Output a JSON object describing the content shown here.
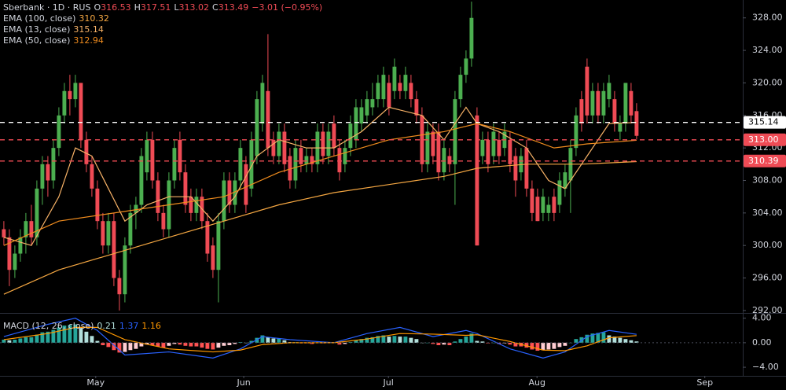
{
  "chart_data": {
    "type": "candlestick",
    "title": {
      "symbol": "Sberbank · 1D · RUS",
      "ohlc": [
        {
          "prefix": "O",
          "value": 316.53
        },
        {
          "prefix": "H",
          "value": 317.51
        },
        {
          "prefix": "L",
          "value": 313.02
        },
        {
          "prefix": "C",
          "value": 313.49
        }
      ],
      "change": "−3.01 (−0.95%)"
    },
    "up_color": "#4caf50",
    "down_color": "#ef4b55",
    "open": [
      302,
      301,
      297,
      299,
      301,
      303,
      301,
      307,
      310,
      308,
      312,
      316,
      319,
      318,
      320,
      313,
      310,
      307,
      303,
      300,
      303,
      296,
      294,
      300,
      304,
      305,
      309,
      313,
      308,
      304,
      302,
      308,
      313,
      309,
      306,
      304,
      306,
      303,
      300,
      297,
      303,
      308,
      305,
      308,
      310,
      307,
      311,
      315,
      319,
      313,
      311,
      314,
      311,
      308,
      312,
      310,
      311,
      310,
      314,
      311,
      315,
      312,
      310,
      312,
      313,
      315,
      316,
      317,
      318,
      318,
      320,
      319,
      320,
      319,
      320,
      318,
      316,
      310,
      314,
      314,
      309,
      311,
      310,
      318,
      321,
      323,
      316,
      311,
      313,
      311,
      313,
      312,
      313,
      311,
      309,
      312,
      307,
      306,
      304,
      304,
      306,
      305,
      307,
      308,
      312,
      318,
      322,
      316,
      319,
      316,
      318,
      318,
      314,
      315,
      319,
      316.53
    ],
    "high": [
      303,
      302,
      300,
      302,
      304,
      305,
      308,
      311,
      311,
      313,
      317,
      320,
      321,
      321,
      320,
      314,
      311,
      308,
      304,
      304,
      304,
      297,
      301,
      305,
      306,
      312,
      314,
      314,
      309,
      305,
      309,
      313,
      314,
      310,
      307,
      307,
      307,
      304,
      301,
      304,
      309,
      309,
      309,
      313,
      311,
      314,
      319,
      321,
      326,
      314,
      315,
      315,
      312,
      313,
      313,
      312,
      312,
      315,
      315,
      315,
      316,
      313,
      313,
      316,
      318,
      318,
      319,
      320,
      321,
      322,
      321,
      323,
      321,
      322,
      321,
      319,
      317,
      315,
      315,
      315,
      313,
      312,
      319,
      322,
      324,
      330,
      317,
      314,
      314,
      315,
      314,
      315,
      314,
      312,
      312,
      313,
      308,
      307,
      307,
      306,
      307,
      309,
      310,
      313,
      317,
      319,
      323,
      320,
      320,
      320,
      321,
      319,
      316,
      320,
      320,
      317.51
    ],
    "low": [
      300,
      295,
      296,
      298,
      299,
      300,
      300,
      305,
      306,
      307,
      311,
      315,
      316,
      317,
      312,
      309,
      306,
      302,
      299,
      299,
      295,
      292,
      293,
      299,
      302,
      304,
      308,
      307,
      303,
      301,
      301,
      307,
      308,
      304,
      303,
      303,
      302,
      298,
      296,
      293,
      302,
      304,
      304,
      307,
      304,
      306,
      310,
      314,
      311,
      310,
      310,
      309,
      307,
      307,
      309,
      309,
      309,
      309,
      310,
      310,
      311,
      308,
      309,
      311,
      312,
      314,
      315,
      316,
      317,
      317,
      316,
      318,
      318,
      318,
      317,
      315,
      309,
      309,
      310,
      308,
      308,
      309,
      305,
      317,
      320,
      322,
      300,
      310,
      309,
      310,
      310,
      311,
      309,
      306,
      308,
      306,
      303,
      303,
      303,
      303,
      303,
      304,
      306,
      304,
      311,
      314,
      315,
      315,
      315,
      315,
      317,
      314,
      313,
      314,
      315,
      313.02
    ],
    "close": [
      301,
      297,
      299,
      301,
      303,
      301,
      307,
      310,
      308,
      312,
      316,
      319,
      318,
      320,
      313,
      310,
      307,
      303,
      300,
      303,
      296,
      294,
      300,
      304,
      305,
      311,
      313,
      308,
      304,
      302,
      308,
      312,
      309,
      305,
      304,
      306,
      303,
      299,
      297,
      303,
      308,
      305,
      308,
      312,
      305,
      313,
      318,
      320,
      312,
      311,
      314,
      310,
      308,
      312,
      310,
      311,
      310,
      314,
      311,
      314,
      312,
      309,
      312,
      315,
      317,
      317,
      318,
      318,
      320,
      321,
      317,
      322,
      319,
      321,
      318,
      316,
      310,
      314,
      311,
      309,
      312,
      310,
      318,
      321,
      323,
      328,
      300,
      313,
      310,
      314,
      311,
      314,
      310,
      308,
      311,
      307,
      304,
      303,
      306,
      305,
      304,
      308,
      309,
      312,
      316,
      315,
      316,
      319,
      316,
      319,
      320,
      315,
      315,
      320,
      316,
      313.49
    ],
    "series": [
      {
        "name": "EMA (100, close)",
        "color": "#f5a742",
        "x": [
          0,
          10,
          20,
          30,
          40,
          50,
          60,
          70,
          80,
          86,
          95,
          105,
          115
        ],
        "values": [
          294,
          297,
          299,
          301,
          303,
          305,
          306.5,
          307.5,
          308.5,
          309.5,
          310,
          310,
          310.32
        ]
      },
      {
        "name": "EMA (13, close)",
        "color": "#f7b267",
        "x": [
          0,
          5,
          10,
          13,
          16,
          19,
          22,
          26,
          30,
          34,
          38,
          42,
          46,
          50,
          55,
          60,
          65,
          70,
          76,
          80,
          84,
          86,
          90,
          95,
          99,
          102,
          106,
          110,
          115
        ],
        "values": [
          301,
          300,
          306,
          312,
          311,
          307,
          303,
          305,
          306,
          306,
          303,
          306,
          311,
          313,
          312,
          312,
          314,
          317,
          316,
          313,
          317,
          315,
          314,
          312,
          308,
          307,
          311,
          315,
          315.14
        ]
      },
      {
        "name": "EMA (50, close)",
        "color": "#f08c1e",
        "x": [
          0,
          10,
          20,
          30,
          40,
          50,
          60,
          70,
          80,
          86,
          92,
          100,
          106,
          115
        ],
        "values": [
          300,
          303,
          304,
          305,
          306,
          309,
          311,
          313,
          314,
          315,
          314,
          312,
          312.5,
          312.94
        ]
      }
    ],
    "price_lines": [
      {
        "value": 315.14,
        "label": "315.14",
        "color": "#ffffff"
      },
      {
        "value": 313,
        "label": "313.00",
        "color": "#ef4b55"
      },
      {
        "value": 310.39,
        "label": "310.39",
        "color": "#ef4b55"
      }
    ],
    "xlim": [
      -0.7,
      134.3
    ],
    "xticks": [
      {
        "value": 16.7,
        "label": "May"
      },
      {
        "value": 43.6,
        "label": "Jun"
      },
      {
        "value": 69.9,
        "label": "Jul"
      },
      {
        "value": 96.9,
        "label": "Aug"
      },
      {
        "value": 127.4,
        "label": "Sep"
      }
    ],
    "ylim": [
      291.7,
      330.2
    ],
    "yticks": [
      {
        "value": 292,
        "label": "292.00"
      },
      {
        "value": 296,
        "label": "296.00"
      },
      {
        "value": 300,
        "label": "300.00"
      },
      {
        "value": 304,
        "label": "304.00"
      },
      {
        "value": 308,
        "label": "308.00"
      },
      {
        "value": 312,
        "label": "312.00"
      },
      {
        "value": 316,
        "label": "316.00"
      },
      {
        "value": 320,
        "label": "320.00"
      },
      {
        "value": 324,
        "label": "324.00"
      },
      {
        "value": 328,
        "label": "328.00"
      }
    ],
    "grid": false,
    "macd": {
      "title": "MACD (12, 26, close)",
      "ylim": [
        -5.4,
        4.6
      ],
      "yticks": [
        {
          "value": 4,
          "label": "4.00"
        },
        {
          "value": 0,
          "label": "0.00"
        },
        {
          "value": -4,
          "label": "−4.00"
        }
      ],
      "histogram": {
        "colors": [
          "#26a69a",
          "#b2dfdb",
          "#ffcdd2",
          "#ff5252"
        ],
        "values": [
          0.5,
          0.4,
          0.5,
          0.7,
          0.9,
          0.9,
          1.3,
          1.7,
          1.8,
          2.1,
          2.5,
          2.8,
          2.9,
          3.0,
          2.4,
          1.8,
          1.1,
          0.3,
          -0.4,
          -0.7,
          -1.2,
          -1.6,
          -1.5,
          -1.2,
          -1.0,
          -0.6,
          -0.3,
          -0.4,
          -0.6,
          -0.8,
          -0.5,
          -0.2,
          -0.3,
          -0.5,
          -0.6,
          -0.6,
          -0.8,
          -1.0,
          -1.1,
          -0.8,
          -0.5,
          -0.4,
          -0.2,
          0.1,
          0.0,
          0.3,
          0.8,
          1.2,
          0.9,
          0.7,
          0.7,
          0.4,
          0.1,
          0.1,
          -0.1,
          -0.1,
          -0.2,
          0.0,
          -0.1,
          0.1,
          0.0,
          -0.3,
          -0.2,
          0.1,
          0.4,
          0.6,
          0.8,
          0.9,
          1.1,
          1.2,
          1.0,
          1.1,
          1.0,
          1.0,
          0.8,
          0.6,
          0.0,
          0.0,
          -0.2,
          -0.4,
          -0.3,
          -0.4,
          0.2,
          0.6,
          1.0,
          1.5,
          0.3,
          0.2,
          -0.1,
          0.0,
          -0.2,
          -0.1,
          -0.3,
          -0.6,
          -0.6,
          -0.8,
          -1.1,
          -1.3,
          -1.2,
          -1.1,
          -1.0,
          -0.7,
          -0.5,
          0.0,
          0.6,
          0.9,
          1.3,
          1.5,
          1.6,
          1.7,
          1.2,
          1.0,
          0.8,
          0.6,
          0.4,
          0.21
        ]
      },
      "series": [
        {
          "color": "#2962ff",
          "x": [
            0,
            8,
            13,
            17,
            22,
            30,
            38,
            43,
            47,
            52,
            60,
            66,
            72,
            78,
            84,
            86,
            92,
            98,
            102,
            106,
            110,
            115
          ],
          "values": [
            1,
            3,
            4,
            2,
            -2,
            -1.5,
            -2.5,
            -1,
            1,
            0.5,
            0,
            1.5,
            2.5,
            1,
            2,
            1.5,
            -1,
            -2.5,
            -1.5,
            1,
            2,
            1.37
          ]
        },
        {
          "color": "#ff9800",
          "x": [
            0,
            8,
            13,
            17,
            22,
            30,
            38,
            43,
            47,
            52,
            60,
            66,
            72,
            78,
            84,
            86,
            92,
            98,
            102,
            106,
            110,
            115
          ],
          "values": [
            0.5,
            1.5,
            2.5,
            2.5,
            0.5,
            -1,
            -1.5,
            -1.2,
            -0.3,
            0,
            0,
            0.6,
            1.5,
            1.4,
            1.2,
            1.3,
            0.2,
            -1.2,
            -1.3,
            -0.5,
            0.8,
            1.16
          ]
        }
      ]
    }
  }
}
